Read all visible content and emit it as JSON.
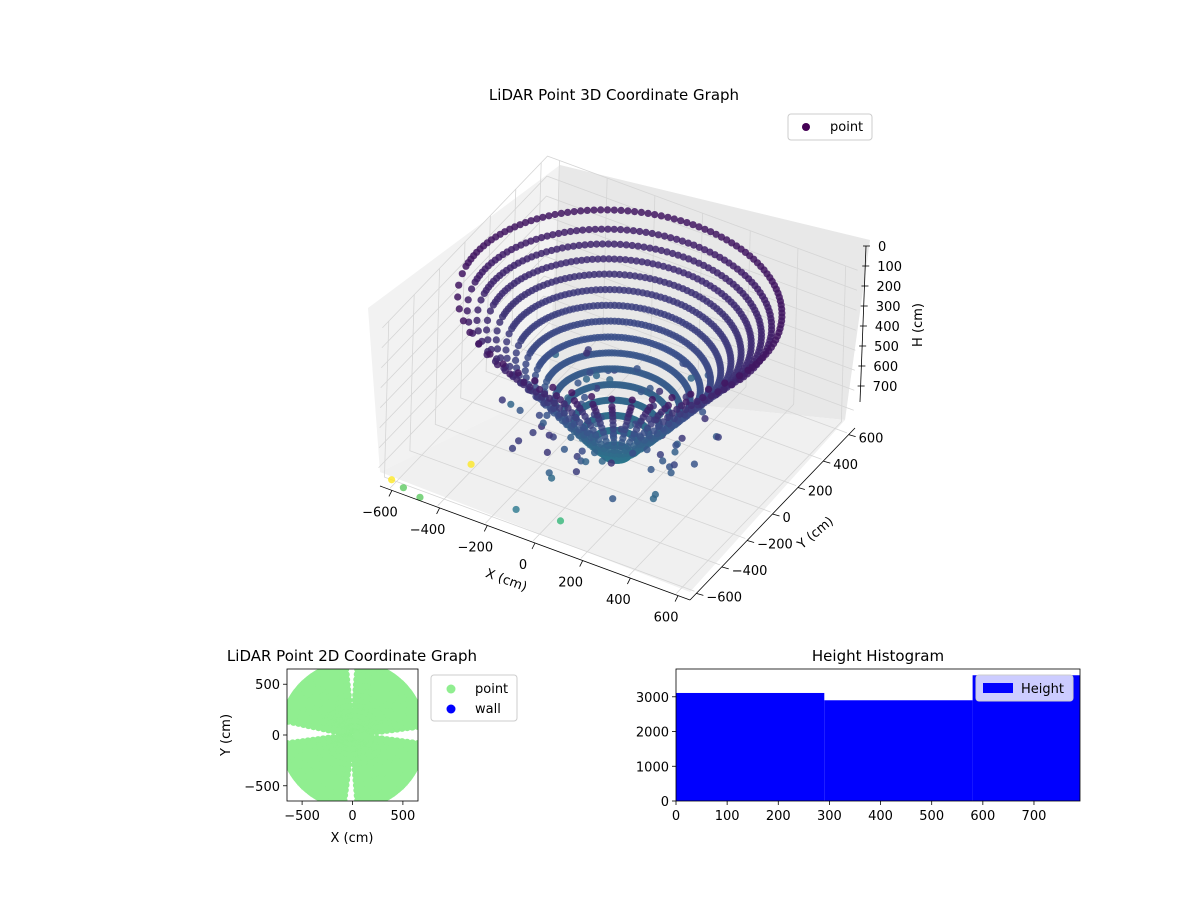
{
  "chart_data": [
    {
      "type": "scatter",
      "projection": "3d",
      "title": "LiDAR Point 3D Coordinate Graph",
      "xlabel": "X (cm)",
      "ylabel": "Y (cm)",
      "zlabel": "H (cm)",
      "xlim": [
        -650,
        650
      ],
      "ylim": [
        -650,
        650
      ],
      "zlim": [
        780,
        0
      ],
      "xticks": [
        -600,
        -400,
        -200,
        0,
        200,
        400,
        600
      ],
      "yticks": [
        -600,
        -400,
        -200,
        0,
        200,
        400,
        600
      ],
      "zticks": [
        0,
        100,
        200,
        300,
        400,
        500,
        600,
        700
      ],
      "z_inverted": true,
      "colormap": "viridis",
      "grid": true,
      "legend": {
        "position": "top-right",
        "entries": [
          {
            "name": "point",
            "color": "#440154"
          }
        ]
      },
      "shape": "hemispherical bowl of LiDAR scan columns, radius ~600 cm, depth ~780 cm",
      "outlier_points": [
        {
          "x": -620,
          "y": -600,
          "h": 780,
          "color": "#fde725"
        },
        {
          "x": -420,
          "y": -350,
          "h": 780,
          "color": "#fde725"
        },
        {
          "x": -100,
          "y": -600,
          "h": 700,
          "color": "#2a788e"
        },
        {
          "x": 60,
          "y": -550,
          "h": 720,
          "color": "#35b779"
        },
        {
          "x": -560,
          "y": -620,
          "h": 780,
          "color": "#5ec962"
        },
        {
          "x": -480,
          "y": -640,
          "h": 780,
          "color": "#5ec962"
        }
      ]
    },
    {
      "type": "scatter",
      "title": "LiDAR Point 2D Coordinate Graph",
      "xlabel": "X (cm)",
      "ylabel": "Y (cm)",
      "xlim": [
        -650,
        650
      ],
      "ylim": [
        -650,
        650
      ],
      "xticks": [
        -500,
        0,
        500
      ],
      "yticks": [
        -500,
        0,
        500
      ],
      "legend": {
        "position": "outside-right",
        "entries": [
          {
            "name": "point",
            "color": "#90ee90"
          },
          {
            "name": "wall",
            "color": "#0000ff"
          }
        ]
      }
    },
    {
      "type": "bar",
      "title": "Height Histogram",
      "xlim": [
        0,
        790
      ],
      "ylim": [
        0,
        3800
      ],
      "xticks": [
        0,
        100,
        200,
        300,
        400,
        500,
        600,
        700
      ],
      "yticks": [
        0,
        1000,
        2000,
        3000
      ],
      "color": "#0000ff",
      "legend": {
        "position": "top-right",
        "entries": [
          {
            "name": "Height",
            "color": "#0000ff"
          }
        ]
      },
      "bins": [
        {
          "start": 0,
          "end": 290,
          "count": 3110
        },
        {
          "start": 290,
          "end": 580,
          "count": 2900
        },
        {
          "start": 580,
          "end": 790,
          "count": 3620
        }
      ]
    }
  ]
}
